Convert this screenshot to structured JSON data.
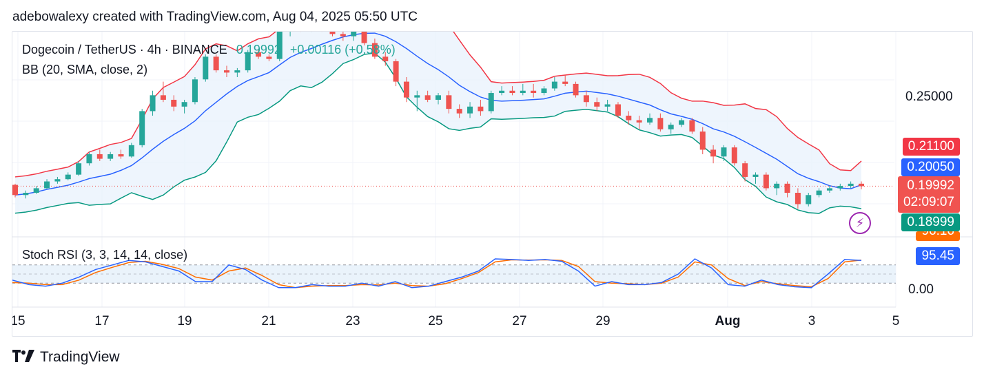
{
  "header": {
    "text": "adebowalexy created with TradingView.com, Aug 04, 2025 05:50 UTC"
  },
  "legend": {
    "symbol": "Dogecoin / TetherUS · 4h · BINANCE",
    "last_price": "0.19992",
    "change": "+0.00116 (+0.58%)",
    "bb": "BB (20, SMA, close, 2)",
    "stoch": "Stoch RSI (3, 3, 14, 14, close)"
  },
  "price_labels": {
    "upper_band": "0.21100",
    "basis": "0.20050",
    "last": "0.19992",
    "countdown": "02:09:07",
    "lower_band": "0.18999",
    "stoch_k": "95.45",
    "stoch_d_partial": "96.16"
  },
  "axis": {
    "price_tick": "0.25000",
    "stoch_tick": "0.00",
    "x_ticks": [
      "15",
      "17",
      "19",
      "21",
      "23",
      "25",
      "27",
      "29",
      "Aug",
      "3",
      "5"
    ]
  },
  "colors": {
    "up": "#26a69a",
    "down": "#ef5350",
    "bb_upper": "#f23645",
    "bb_basis": "#2962ff",
    "bb_lower": "#089981",
    "bb_fill": "#eaf3fc",
    "stoch_k": "#2962ff",
    "stoch_d": "#ff6d00",
    "last_price_bg": "#f05350"
  },
  "footer": {
    "brand": "TradingView",
    "logo_icon": "tradingview-logo-icon"
  },
  "chart_data": [
    {
      "type": "candlestick",
      "title": "Dogecoin / TetherUS · 4h · BINANCE",
      "timeframe": "4h",
      "x_range": [
        "Jul 15",
        "Aug 4"
      ],
      "y_range": [
        0.18,
        0.265
      ],
      "last_price": 0.19992,
      "candles_approx": [
        [
          0.2005,
          0.201,
          0.195,
          0.196
        ],
        [
          0.196,
          0.198,
          0.1945,
          0.197
        ],
        [
          0.197,
          0.2,
          0.1965,
          0.199
        ],
        [
          0.199,
          0.203,
          0.1985,
          0.202
        ],
        [
          0.202,
          0.204,
          0.201,
          0.203
        ],
        [
          0.203,
          0.206,
          0.2025,
          0.205
        ],
        [
          0.205,
          0.211,
          0.2045,
          0.21
        ],
        [
          0.21,
          0.215,
          0.209,
          0.214
        ],
        [
          0.214,
          0.216,
          0.211,
          0.212
        ],
        [
          0.212,
          0.215,
          0.211,
          0.214
        ],
        [
          0.214,
          0.216,
          0.212,
          0.213
        ],
        [
          0.213,
          0.219,
          0.2125,
          0.218
        ],
        [
          0.218,
          0.234,
          0.217,
          0.233
        ],
        [
          0.233,
          0.242,
          0.231,
          0.24
        ],
        [
          0.24,
          0.246,
          0.237,
          0.238
        ],
        [
          0.238,
          0.24,
          0.233,
          0.235
        ],
        [
          0.235,
          0.238,
          0.232,
          0.237
        ],
        [
          0.237,
          0.248,
          0.236,
          0.247
        ],
        [
          0.247,
          0.258,
          0.246,
          0.257
        ],
        [
          0.257,
          0.258,
          0.25,
          0.251
        ],
        [
          0.251,
          0.253,
          0.248,
          0.25
        ],
        [
          0.25,
          0.252,
          0.248,
          0.251
        ],
        [
          0.251,
          0.26,
          0.25,
          0.259
        ],
        [
          0.259,
          0.26,
          0.256,
          0.257
        ],
        [
          0.257,
          0.258,
          0.255,
          0.256
        ],
        [
          0.256,
          0.27,
          0.255,
          0.269
        ],
        [
          0.269,
          0.273,
          0.266,
          0.27
        ],
        [
          0.27,
          0.272,
          0.268,
          0.269
        ],
        [
          0.269,
          0.276,
          0.268,
          0.274
        ],
        [
          0.274,
          0.275,
          0.268,
          0.27
        ],
        [
          0.27,
          0.272,
          0.266,
          0.267
        ],
        [
          0.267,
          0.269,
          0.264,
          0.266
        ],
        [
          0.266,
          0.27,
          0.264,
          0.269
        ],
        [
          0.269,
          0.27,
          0.262,
          0.263
        ],
        [
          0.263,
          0.265,
          0.256,
          0.257
        ],
        [
          0.257,
          0.259,
          0.253,
          0.255
        ],
        [
          0.255,
          0.256,
          0.244,
          0.246
        ],
        [
          0.246,
          0.248,
          0.237,
          0.239
        ],
        [
          0.239,
          0.242,
          0.233,
          0.24
        ],
        [
          0.24,
          0.242,
          0.237,
          0.238
        ],
        [
          0.238,
          0.241,
          0.236,
          0.24
        ],
        [
          0.24,
          0.242,
          0.232,
          0.234
        ],
        [
          0.234,
          0.236,
          0.23,
          0.232
        ],
        [
          0.232,
          0.237,
          0.23,
          0.235
        ],
        [
          0.235,
          0.238,
          0.231,
          0.233
        ],
        [
          0.233,
          0.242,
          0.232,
          0.241
        ],
        [
          0.241,
          0.244,
          0.24,
          0.242
        ],
        [
          0.242,
          0.244,
          0.24,
          0.241
        ],
        [
          0.241,
          0.245,
          0.24,
          0.242
        ],
        [
          0.242,
          0.245,
          0.239,
          0.241
        ],
        [
          0.241,
          0.244,
          0.24,
          0.243
        ],
        [
          0.243,
          0.248,
          0.242,
          0.246
        ],
        [
          0.246,
          0.249,
          0.244,
          0.245
        ],
        [
          0.245,
          0.246,
          0.239,
          0.24
        ],
        [
          0.24,
          0.242,
          0.235,
          0.237
        ],
        [
          0.237,
          0.239,
          0.233,
          0.235
        ],
        [
          0.235,
          0.238,
          0.233,
          0.236
        ],
        [
          0.236,
          0.237,
          0.23,
          0.231
        ],
        [
          0.231,
          0.233,
          0.227,
          0.229
        ],
        [
          0.229,
          0.231,
          0.225,
          0.228
        ],
        [
          0.228,
          0.232,
          0.227,
          0.23
        ],
        [
          0.23,
          0.232,
          0.224,
          0.225
        ],
        [
          0.225,
          0.228,
          0.223,
          0.227
        ],
        [
          0.227,
          0.23,
          0.226,
          0.229
        ],
        [
          0.229,
          0.23,
          0.223,
          0.224
        ],
        [
          0.224,
          0.226,
          0.214,
          0.216
        ],
        [
          0.216,
          0.218,
          0.21,
          0.213
        ],
        [
          0.213,
          0.218,
          0.211,
          0.217
        ],
        [
          0.217,
          0.218,
          0.209,
          0.21
        ],
        [
          0.21,
          0.211,
          0.202,
          0.204
        ],
        [
          0.204,
          0.206,
          0.201,
          0.205
        ],
        [
          0.205,
          0.206,
          0.198,
          0.199
        ],
        [
          0.199,
          0.202,
          0.196,
          0.201
        ],
        [
          0.201,
          0.202,
          0.195,
          0.197
        ],
        [
          0.197,
          0.199,
          0.19,
          0.192
        ],
        [
          0.192,
          0.197,
          0.191,
          0.196
        ],
        [
          0.196,
          0.199,
          0.195,
          0.198
        ],
        [
          0.198,
          0.2,
          0.197,
          0.199
        ],
        [
          0.199,
          0.201,
          0.198,
          0.2
        ],
        [
          0.2,
          0.202,
          0.199,
          0.201
        ],
        [
          0.201,
          0.202,
          0.1985,
          0.1999
        ]
      ],
      "bollinger": {
        "label": "BB (20, SMA, close, 2)",
        "upper_last": 0.211,
        "basis_last": 0.2005,
        "lower_last": 0.18999
      }
    },
    {
      "type": "line",
      "title": "Stoch RSI (3, 3, 14, 14, close)",
      "y_range": [
        0,
        100
      ],
      "bands": [
        20,
        50,
        80
      ],
      "series": [
        {
          "name": "K",
          "last": 95.45,
          "values": [
            30,
            15,
            10,
            20,
            40,
            65,
            80,
            95,
            90,
            75,
            60,
            25,
            25,
            80,
            65,
            30,
            5,
            5,
            15,
            10,
            10,
            20,
            10,
            25,
            5,
            10,
            25,
            40,
            60,
            100,
            98,
            95,
            98,
            92,
            60,
            10,
            25,
            15,
            15,
            22,
            50,
            100,
            70,
            15,
            10,
            30,
            15,
            8,
            5,
            50,
            98,
            95
          ]
        },
        {
          "name": "D",
          "last": 96.16,
          "values": [
            22,
            20,
            15,
            15,
            30,
            55,
            72,
            88,
            92,
            82,
            68,
            40,
            30,
            60,
            70,
            45,
            15,
            5,
            10,
            12,
            12,
            15,
            14,
            20,
            12,
            10,
            18,
            35,
            55,
            90,
            97,
            96,
            97,
            95,
            75,
            25,
            20,
            18,
            15,
            20,
            40,
            90,
            80,
            35,
            12,
            25,
            18,
            12,
            8,
            35,
            90,
            96
          ]
        }
      ]
    }
  ]
}
